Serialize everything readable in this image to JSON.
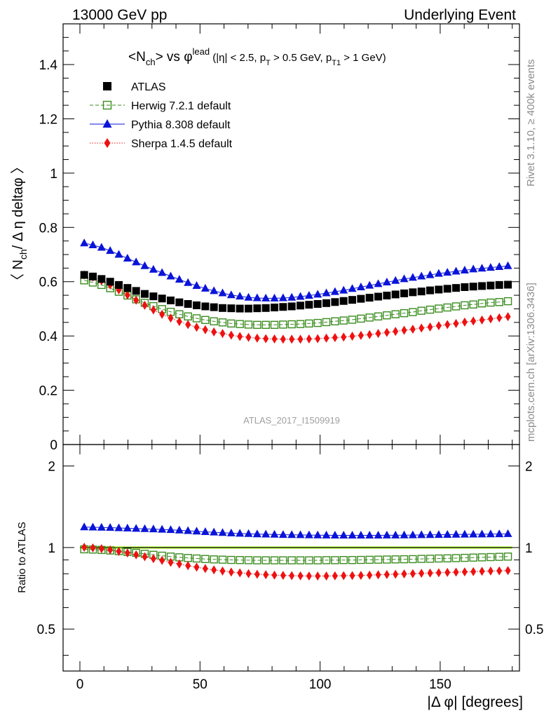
{
  "header": {
    "left": "13000 GeV pp",
    "right": "Underlying Event"
  },
  "side": {
    "rivet": "Rivet 3.1.10, ≥ 400k events",
    "mcplots": "mcplots.cern.ch [arXiv:1306.3436]"
  },
  "watermark": "ATLAS_2017_I1509919",
  "colors": {
    "atlas": "#000000",
    "herwig": "#3a8c1e",
    "pythia": "#0a14d8",
    "sherpa": "#ee1111",
    "band": "#ccff66"
  },
  "chart_data": {
    "type": "scatter",
    "title": {
      "pre": "<N",
      "pre_sub": "ch",
      "mid": "> vs φ",
      "mid_sup": "lead",
      "cuts": [
        {
          "text": " (|η| < 2.5, p",
          "sub": "T"
        },
        {
          "text": " > 0.5 GeV, p",
          "sub": "T1"
        },
        {
          "text": " > 1 GeV)",
          "sub": ""
        }
      ]
    },
    "ylabel_main": {
      "pre": "〈 N",
      "sub": "ch",
      "post": "/ Δ η deltaφ 〉"
    },
    "ylabel_ratio": "Ratio to ATLAS",
    "xlabel": "|Δ φ| [degrees]",
    "xlim": [
      -7,
      183
    ],
    "main_ylim": [
      0,
      1.55
    ],
    "ratio_ylim": [
      0.35,
      2.4
    ],
    "x_ticks": [
      0,
      50,
      100,
      150
    ],
    "main_y_ticks": [
      "0",
      "0.2",
      "0.4",
      "0.6",
      "0.8",
      "1",
      "1.2",
      "1.4"
    ],
    "ratio_y_ticks": [
      "0.5",
      "1",
      "2"
    ],
    "x": [
      1.8,
      5.4,
      9,
      12.6,
      16.2,
      19.8,
      23.4,
      27,
      30.6,
      34.2,
      37.8,
      41.4,
      45,
      48.6,
      52.2,
      55.8,
      59.4,
      63,
      66.6,
      70.2,
      73.8,
      77.4,
      81,
      84.6,
      88.2,
      91.8,
      95.4,
      99,
      102.6,
      106.2,
      109.8,
      113.4,
      117,
      120.6,
      124.2,
      127.8,
      131.4,
      135,
      138.6,
      142.2,
      145.8,
      149.4,
      153,
      156.6,
      160.2,
      163.8,
      167.4,
      171,
      174.6,
      178.2
    ],
    "series": [
      {
        "name": "ATLAS",
        "marker": "square",
        "values": [
          0.625,
          0.619,
          0.61,
          0.6,
          0.588,
          0.577,
          0.566,
          0.555,
          0.546,
          0.538,
          0.531,
          0.524,
          0.518,
          0.513,
          0.509,
          0.506,
          0.503,
          0.502,
          0.501,
          0.501,
          0.502,
          0.503,
          0.505,
          0.507,
          0.509,
          0.512,
          0.515,
          0.518,
          0.521,
          0.525,
          0.529,
          0.533,
          0.537,
          0.541,
          0.545,
          0.549,
          0.553,
          0.557,
          0.561,
          0.564,
          0.568,
          0.571,
          0.574,
          0.577,
          0.58,
          0.582,
          0.584,
          0.586,
          0.588,
          0.589
        ]
      },
      {
        "name": "Herwig 7.2.1 default",
        "marker": "open-square",
        "line": "dashed",
        "values": [
          0.605,
          0.597,
          0.588,
          0.576,
          0.563,
          0.549,
          0.535,
          0.522,
          0.51,
          0.499,
          0.489,
          0.48,
          0.472,
          0.465,
          0.459,
          0.454,
          0.45,
          0.446,
          0.444,
          0.442,
          0.441,
          0.441,
          0.441,
          0.442,
          0.443,
          0.444,
          0.446,
          0.448,
          0.451,
          0.454,
          0.457,
          0.46,
          0.464,
          0.468,
          0.472,
          0.476,
          0.48,
          0.484,
          0.488,
          0.493,
          0.497,
          0.501,
          0.505,
          0.509,
          0.513,
          0.516,
          0.52,
          0.523,
          0.525,
          0.528
        ],
        "ratio": [
          0.985,
          0.983,
          0.98,
          0.975,
          0.97,
          0.963,
          0.956,
          0.948,
          0.94,
          0.933,
          0.926,
          0.92,
          0.915,
          0.911,
          0.907,
          0.904,
          0.902,
          0.9,
          0.899,
          0.898,
          0.897,
          0.897,
          0.897,
          0.897,
          0.897,
          0.897,
          0.897,
          0.897,
          0.898,
          0.898,
          0.899,
          0.899,
          0.9,
          0.901,
          0.902,
          0.903,
          0.904,
          0.905,
          0.906,
          0.908,
          0.909,
          0.911,
          0.912,
          0.914,
          0.916,
          0.918,
          0.92,
          0.922,
          0.924,
          0.926
        ]
      },
      {
        "name": "Pythia 8.308 default",
        "marker": "triangle",
        "line": "solid",
        "values": [
          0.742,
          0.735,
          0.726,
          0.714,
          0.7,
          0.686,
          0.672,
          0.658,
          0.645,
          0.633,
          0.62,
          0.608,
          0.596,
          0.585,
          0.575,
          0.566,
          0.558,
          0.551,
          0.546,
          0.542,
          0.54,
          0.539,
          0.539,
          0.54,
          0.542,
          0.545,
          0.549,
          0.553,
          0.558,
          0.563,
          0.568,
          0.574,
          0.58,
          0.586,
          0.592,
          0.598,
          0.604,
          0.61,
          0.615,
          0.62,
          0.625,
          0.63,
          0.634,
          0.638,
          0.642,
          0.646,
          0.649,
          0.652,
          0.655,
          0.658
        ],
        "ratio": [
          1.19,
          1.188,
          1.186,
          1.184,
          1.181,
          1.178,
          1.175,
          1.172,
          1.169,
          1.166,
          1.162,
          1.158,
          1.153,
          1.148,
          1.143,
          1.138,
          1.134,
          1.13,
          1.127,
          1.124,
          1.121,
          1.119,
          1.117,
          1.115,
          1.114,
          1.113,
          1.112,
          1.111,
          1.11,
          1.109,
          1.109,
          1.109,
          1.109,
          1.109,
          1.109,
          1.11,
          1.11,
          1.111,
          1.112,
          1.113,
          1.114,
          1.115,
          1.116,
          1.117,
          1.118,
          1.119,
          1.12,
          1.121,
          1.122,
          1.123
        ]
      },
      {
        "name": "Sherpa 1.4.5 default",
        "marker": "diamond",
        "line": "dotted",
        "values": [
          0.625,
          0.617,
          0.604,
          0.588,
          0.57,
          0.551,
          0.532,
          0.513,
          0.496,
          0.48,
          0.466,
          0.453,
          0.442,
          0.432,
          0.423,
          0.415,
          0.409,
          0.403,
          0.398,
          0.395,
          0.392,
          0.39,
          0.389,
          0.388,
          0.388,
          0.388,
          0.389,
          0.39,
          0.392,
          0.394,
          0.396,
          0.399,
          0.402,
          0.405,
          0.409,
          0.413,
          0.417,
          0.421,
          0.425,
          0.429,
          0.433,
          0.438,
          0.442,
          0.446,
          0.451,
          0.455,
          0.459,
          0.463,
          0.467,
          0.471
        ],
        "ratio": [
          1.002,
          0.997,
          0.99,
          0.98,
          0.968,
          0.955,
          0.94,
          0.925,
          0.91,
          0.896,
          0.882,
          0.869,
          0.857,
          0.846,
          0.836,
          0.827,
          0.819,
          0.812,
          0.806,
          0.801,
          0.797,
          0.794,
          0.791,
          0.789,
          0.787,
          0.786,
          0.785,
          0.785,
          0.785,
          0.786,
          0.787,
          0.788,
          0.789,
          0.791,
          0.793,
          0.795,
          0.797,
          0.799,
          0.801,
          0.803,
          0.805,
          0.807,
          0.809,
          0.811,
          0.813,
          0.815,
          0.817,
          0.819,
          0.82,
          0.822
        ]
      }
    ]
  }
}
